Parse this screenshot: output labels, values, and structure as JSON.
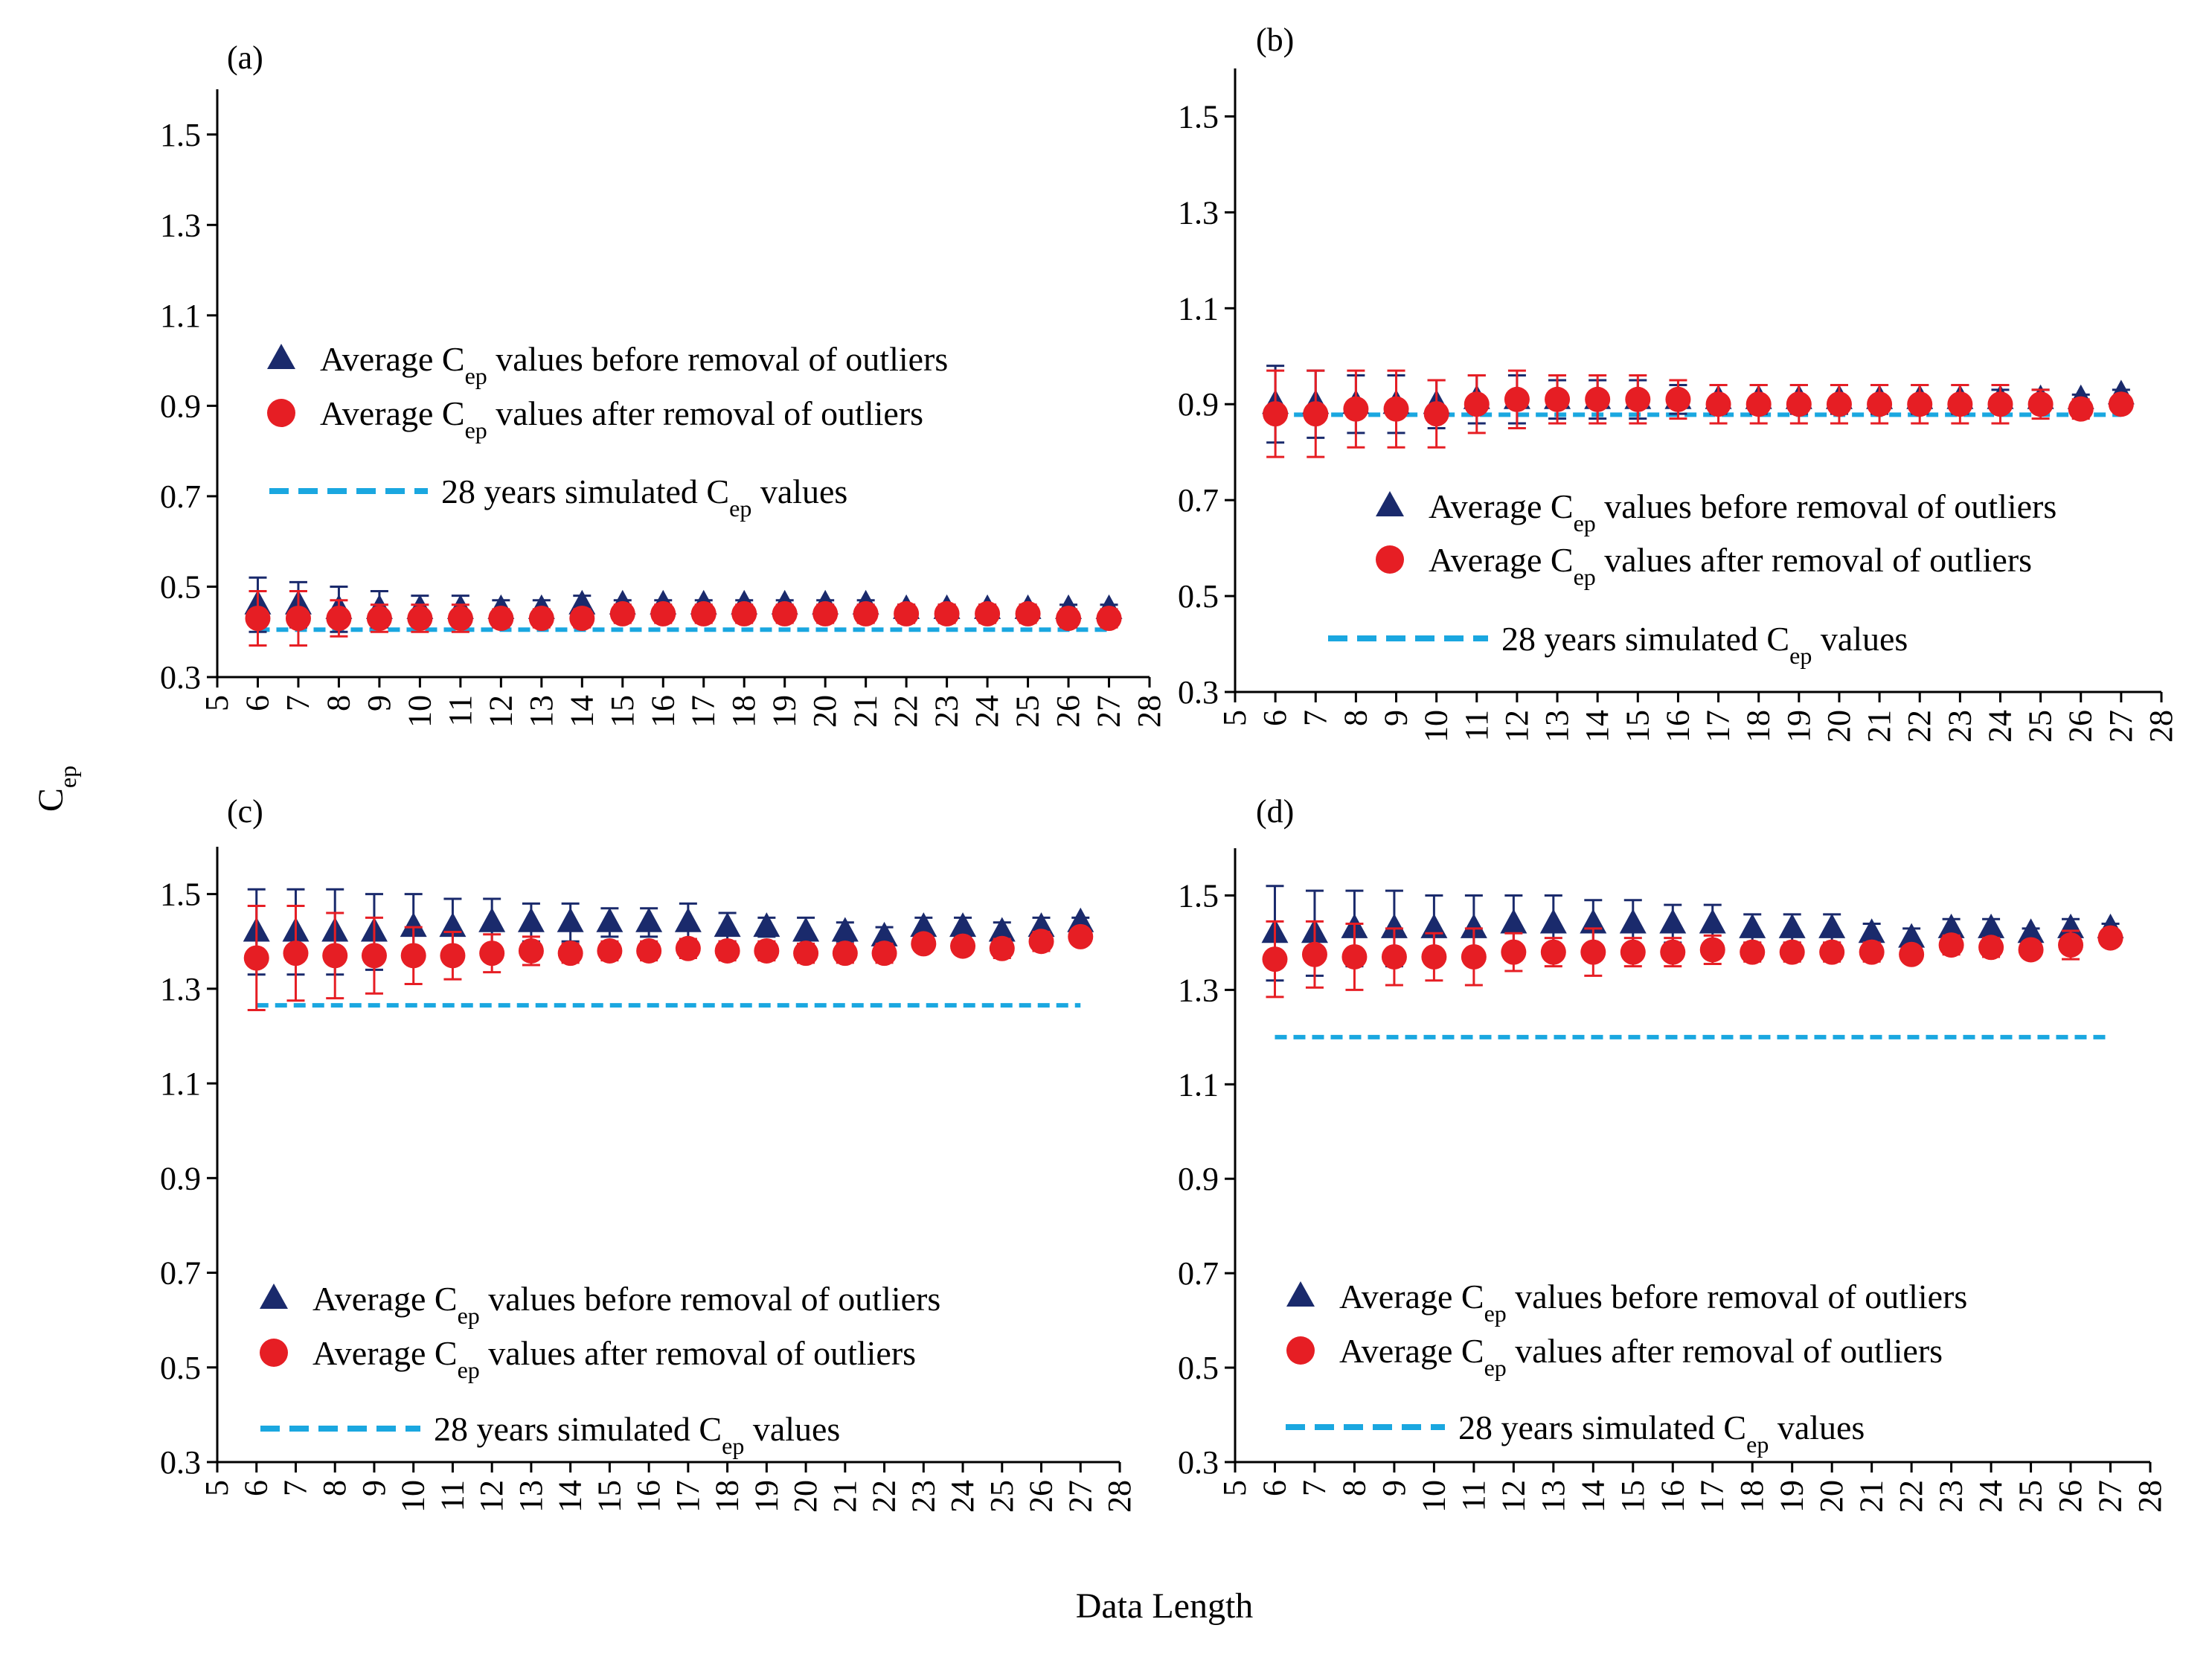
{
  "figure": {
    "shared_xlabel": "Data Length",
    "shared_ylabel_main": "C",
    "shared_ylabel_sub": "ep",
    "colors": {
      "before": "#1a2a6c",
      "after": "#e61e24",
      "simulated": "#1aa7e0",
      "axis": "#000000"
    },
    "icons": {
      "before": "triangle-marker-icon",
      "after": "circle-marker-icon",
      "simulated": "dashed-line-icon"
    }
  },
  "chart_data": [
    {
      "type": "scatter",
      "panel": "(a)",
      "x_ticks": [
        5,
        6,
        7,
        8,
        9,
        10,
        11,
        12,
        13,
        14,
        15,
        16,
        17,
        18,
        19,
        20,
        21,
        22,
        23,
        24,
        25,
        26,
        27,
        28
      ],
      "y_ticks": [
        "0.3",
        "0.5",
        "0.7",
        "0.9",
        "1.1",
        "1.3",
        "1.5"
      ],
      "xlim": [
        5,
        28
      ],
      "ylim": [
        0.3,
        1.6
      ],
      "legend_position": "middle-left",
      "legend": {
        "before": {
          "prefix": "Average ",
          "main": "C",
          "sub": "ep",
          "suffix": " values before removal of outliers"
        },
        "after": {
          "prefix": "Average ",
          "main": "C",
          "sub": "ep",
          "suffix": " values after removal of outliers"
        },
        "simulated": {
          "prefix": "28 years simulated ",
          "main": "C",
          "sub": "ep",
          "suffix": " values"
        }
      },
      "x": [
        6,
        7,
        8,
        9,
        10,
        11,
        12,
        13,
        14,
        15,
        16,
        17,
        18,
        19,
        20,
        21,
        22,
        23,
        24,
        25,
        26,
        27
      ],
      "series": [
        {
          "name": "before",
          "values": [
            0.46,
            0.46,
            0.45,
            0.45,
            0.45,
            0.45,
            0.45,
            0.45,
            0.46,
            0.46,
            0.46,
            0.46,
            0.46,
            0.46,
            0.46,
            0.46,
            0.45,
            0.45,
            0.45,
            0.45,
            0.45,
            0.45
          ],
          "err": [
            0.06,
            0.05,
            0.05,
            0.04,
            0.03,
            0.03,
            0.02,
            0.02,
            0.02,
            0.01,
            0.01,
            0.01,
            0.01,
            0.01,
            0.01,
            0.01,
            0.01,
            0.01,
            0.01,
            0.01,
            0.01,
            0.01
          ]
        },
        {
          "name": "after",
          "values": [
            0.43,
            0.43,
            0.43,
            0.43,
            0.43,
            0.43,
            0.43,
            0.43,
            0.43,
            0.44,
            0.44,
            0.44,
            0.44,
            0.44,
            0.44,
            0.44,
            0.44,
            0.44,
            0.44,
            0.44,
            0.43,
            0.43
          ],
          "err": [
            0.06,
            0.06,
            0.04,
            0.03,
            0.03,
            0.03,
            0.02,
            0.02,
            0.02,
            0.02,
            0.02,
            0.02,
            0.02,
            0.02,
            0.02,
            0.02,
            0.02,
            0.02,
            0.02,
            0.02,
            0.02,
            0.02
          ]
        }
      ],
      "simulated": {
        "value": 0.405,
        "x_range": [
          6,
          27
        ]
      }
    },
    {
      "type": "scatter",
      "panel": "(b)",
      "x_ticks": [
        5,
        6,
        7,
        8,
        9,
        10,
        11,
        12,
        13,
        14,
        15,
        16,
        17,
        18,
        19,
        20,
        21,
        22,
        23,
        24,
        25,
        26,
        27,
        28
      ],
      "y_ticks": [
        "0.3",
        "0.5",
        "0.7",
        "0.9",
        "1.1",
        "1.3",
        "1.5"
      ],
      "xlim": [
        5,
        28
      ],
      "ylim": [
        0.3,
        1.6
      ],
      "legend_position": "middle-right",
      "legend": {
        "before": {
          "prefix": "Average ",
          "main": "C",
          "sub": "ep",
          "suffix": " values before removal of outliers"
        },
        "after": {
          "prefix": "Average ",
          "main": "C",
          "sub": "ep",
          "suffix": " values after removal of outliers"
        },
        "simulated": {
          "prefix": "28 years simulated ",
          "main": "C",
          "sub": "ep",
          "suffix": " values"
        }
      },
      "x": [
        6,
        7,
        8,
        9,
        10,
        11,
        12,
        13,
        14,
        15,
        16,
        17,
        18,
        19,
        20,
        21,
        22,
        23,
        24,
        25,
        26,
        27
      ],
      "series": [
        {
          "name": "before",
          "values": [
            0.9,
            0.9,
            0.9,
            0.9,
            0.9,
            0.91,
            0.91,
            0.91,
            0.91,
            0.91,
            0.91,
            0.91,
            0.91,
            0.91,
            0.91,
            0.91,
            0.91,
            0.91,
            0.91,
            0.91,
            0.91,
            0.92
          ],
          "err": [
            0.08,
            0.07,
            0.06,
            0.06,
            0.05,
            0.05,
            0.05,
            0.04,
            0.04,
            0.04,
            0.03,
            0.03,
            0.03,
            0.03,
            0.03,
            0.03,
            0.03,
            0.03,
            0.02,
            0.02,
            0.01,
            0.01
          ]
        },
        {
          "name": "after",
          "values": [
            0.88,
            0.88,
            0.89,
            0.89,
            0.88,
            0.9,
            0.91,
            0.91,
            0.91,
            0.91,
            0.91,
            0.9,
            0.9,
            0.9,
            0.9,
            0.9,
            0.9,
            0.9,
            0.9,
            0.9,
            0.89,
            0.9
          ],
          "err": [
            0.09,
            0.09,
            0.08,
            0.08,
            0.07,
            0.06,
            0.06,
            0.05,
            0.05,
            0.05,
            0.04,
            0.04,
            0.04,
            0.04,
            0.04,
            0.04,
            0.04,
            0.04,
            0.04,
            0.03,
            0.02,
            0.01
          ]
        }
      ],
      "simulated": {
        "value": 0.878,
        "x_range": [
          6,
          27
        ]
      }
    },
    {
      "type": "scatter",
      "panel": "(c)",
      "x_ticks": [
        5,
        6,
        7,
        8,
        9,
        10,
        11,
        12,
        13,
        14,
        15,
        16,
        17,
        18,
        19,
        20,
        21,
        22,
        23,
        24,
        25,
        26,
        27,
        28
      ],
      "y_ticks": [
        "0.3",
        "0.5",
        "0.7",
        "0.9",
        "1.1",
        "1.3",
        "1.5"
      ],
      "xlim": [
        5,
        28
      ],
      "ylim": [
        0.3,
        1.6
      ],
      "legend_position": "bottom-left",
      "legend": {
        "before": {
          "prefix": "Average ",
          "main": "C",
          "sub": "ep",
          "suffix": " values before removal of outliers"
        },
        "after": {
          "prefix": "Average ",
          "main": "C",
          "sub": "ep",
          "suffix": " values after removal of outliers"
        },
        "simulated": {
          "prefix": "28 years simulated ",
          "main": "C",
          "sub": "ep",
          "suffix": " values"
        }
      },
      "x": [
        6,
        7,
        8,
        9,
        10,
        11,
        12,
        13,
        14,
        15,
        16,
        17,
        18,
        19,
        20,
        21,
        22,
        23,
        24,
        25,
        26,
        27
      ],
      "series": [
        {
          "name": "before",
          "values": [
            1.42,
            1.42,
            1.42,
            1.42,
            1.43,
            1.43,
            1.44,
            1.44,
            1.44,
            1.44,
            1.44,
            1.44,
            1.43,
            1.43,
            1.42,
            1.42,
            1.41,
            1.43,
            1.43,
            1.42,
            1.43,
            1.44
          ],
          "err": [
            0.09,
            0.09,
            0.09,
            0.08,
            0.07,
            0.06,
            0.05,
            0.04,
            0.04,
            0.03,
            0.03,
            0.04,
            0.03,
            0.02,
            0.03,
            0.02,
            0.02,
            0.02,
            0.02,
            0.02,
            0.02,
            0.01
          ]
        },
        {
          "name": "after",
          "values": [
            1.365,
            1.375,
            1.37,
            1.37,
            1.37,
            1.37,
            1.375,
            1.38,
            1.375,
            1.38,
            1.38,
            1.385,
            1.38,
            1.38,
            1.375,
            1.375,
            1.375,
            1.395,
            1.39,
            1.385,
            1.4,
            1.41
          ],
          "err": [
            0.11,
            0.1,
            0.09,
            0.08,
            0.06,
            0.05,
            0.04,
            0.03,
            0.02,
            0.02,
            0.02,
            0.02,
            0.02,
            0.02,
            0.02,
            0.02,
            0.02,
            0.01,
            0.01,
            0.02,
            0.02,
            0.01
          ]
        }
      ],
      "simulated": {
        "value": 1.265,
        "x_range": [
          6,
          27
        ]
      }
    },
    {
      "type": "scatter",
      "panel": "(d)",
      "x_ticks": [
        5,
        6,
        7,
        8,
        9,
        10,
        11,
        12,
        13,
        14,
        15,
        16,
        17,
        18,
        19,
        20,
        21,
        22,
        23,
        24,
        25,
        26,
        27,
        28
      ],
      "y_ticks": [
        "0.3",
        "0.5",
        "0.7",
        "0.9",
        "1.1",
        "1.3",
        "1.5"
      ],
      "xlim": [
        5,
        28
      ],
      "ylim": [
        0.3,
        1.6
      ],
      "legend_position": "bottom-left",
      "legend": {
        "before": {
          "prefix": "Average ",
          "main": "C",
          "sub": "ep",
          "suffix": " values before removal of outliers"
        },
        "after": {
          "prefix": "Average ",
          "main": "C",
          "sub": "ep",
          "suffix": " values after removal of outliers"
        },
        "simulated": {
          "prefix": "28 years simulated ",
          "main": "C",
          "sub": "ep",
          "suffix": " values"
        }
      },
      "x": [
        6,
        7,
        8,
        9,
        10,
        11,
        12,
        13,
        14,
        15,
        16,
        17,
        18,
        19,
        20,
        21,
        22,
        23,
        24,
        25,
        26,
        27
      ],
      "series": [
        {
          "name": "before",
          "values": [
            1.42,
            1.42,
            1.43,
            1.43,
            1.43,
            1.43,
            1.44,
            1.44,
            1.44,
            1.44,
            1.44,
            1.44,
            1.43,
            1.43,
            1.43,
            1.42,
            1.41,
            1.43,
            1.43,
            1.42,
            1.43,
            1.43
          ],
          "err": [
            0.1,
            0.09,
            0.08,
            0.08,
            0.07,
            0.07,
            0.06,
            0.06,
            0.05,
            0.05,
            0.04,
            0.04,
            0.03,
            0.03,
            0.03,
            0.02,
            0.02,
            0.02,
            0.02,
            0.01,
            0.02,
            0.01
          ]
        },
        {
          "name": "after",
          "values": [
            1.365,
            1.375,
            1.37,
            1.37,
            1.37,
            1.37,
            1.38,
            1.38,
            1.38,
            1.38,
            1.38,
            1.385,
            1.38,
            1.38,
            1.38,
            1.38,
            1.375,
            1.395,
            1.39,
            1.385,
            1.395,
            1.41
          ],
          "err": [
            0.08,
            0.07,
            0.07,
            0.06,
            0.05,
            0.06,
            0.04,
            0.03,
            0.05,
            0.03,
            0.03,
            0.03,
            0.02,
            0.02,
            0.02,
            0.02,
            0.01,
            0.02,
            0.02,
            0.01,
            0.03,
            0.01
          ]
        }
      ],
      "simulated": {
        "value": 1.2,
        "x_range": [
          6,
          27
        ]
      }
    }
  ]
}
